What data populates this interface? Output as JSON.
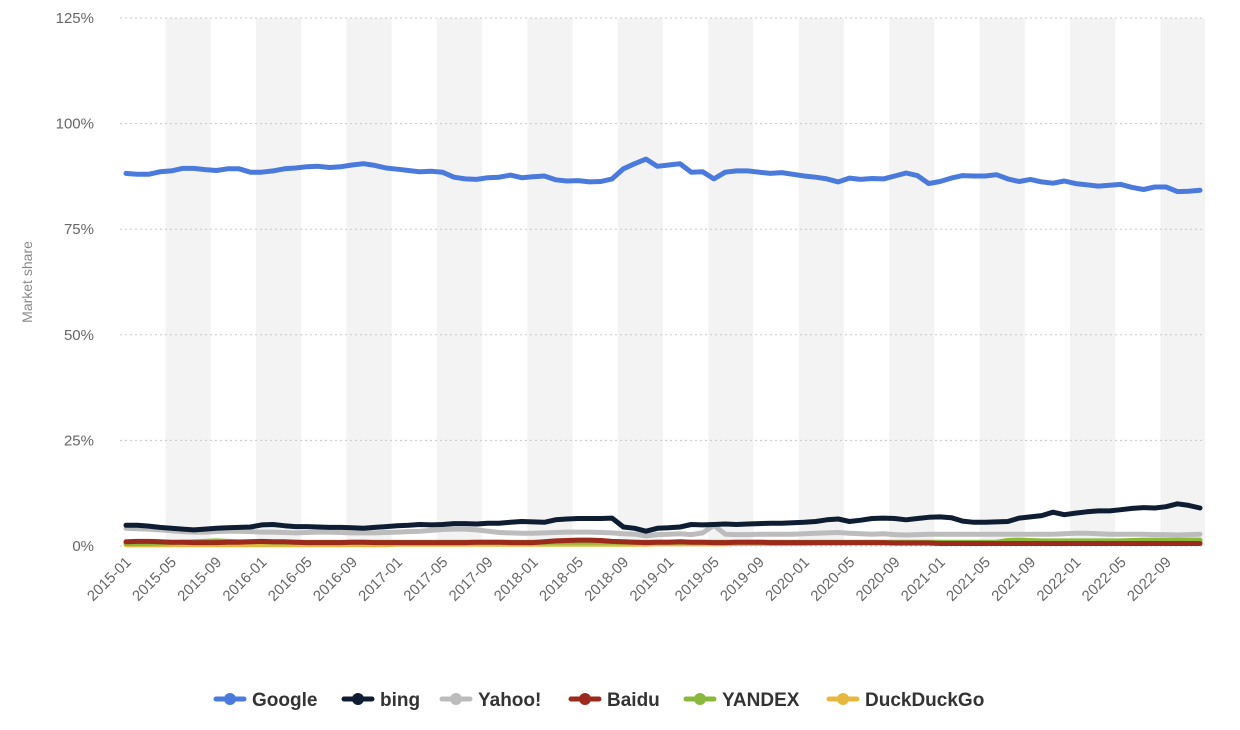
{
  "chart_data": {
    "type": "line",
    "title": "",
    "xlabel": "",
    "ylabel": "Market share",
    "ylim": [
      0,
      125
    ],
    "y_ticks": [
      "0%",
      "25%",
      "50%",
      "75%",
      "100%",
      "125%"
    ],
    "y_tick_values": [
      0,
      25,
      50,
      75,
      100,
      125
    ],
    "grid": "horizontal dotted",
    "legend_position": "bottom-center",
    "x": [
      "2015-01",
      "2015-02",
      "2015-03",
      "2015-04",
      "2015-05",
      "2015-06",
      "2015-07",
      "2015-08",
      "2015-09",
      "2015-10",
      "2015-11",
      "2015-12",
      "2016-01",
      "2016-02",
      "2016-03",
      "2016-04",
      "2016-05",
      "2016-06",
      "2016-07",
      "2016-08",
      "2016-09",
      "2016-10",
      "2016-11",
      "2016-12",
      "2017-01",
      "2017-02",
      "2017-03",
      "2017-04",
      "2017-05",
      "2017-06",
      "2017-07",
      "2017-08",
      "2017-09",
      "2017-10",
      "2017-11",
      "2017-12",
      "2018-01",
      "2018-02",
      "2018-03",
      "2018-04",
      "2018-05",
      "2018-06",
      "2018-07",
      "2018-08",
      "2018-09",
      "2018-10",
      "2018-11",
      "2018-12",
      "2019-01",
      "2019-02",
      "2019-03",
      "2019-04",
      "2019-05",
      "2019-06",
      "2019-07",
      "2019-08",
      "2019-09",
      "2019-10",
      "2019-11",
      "2019-12",
      "2020-01",
      "2020-02",
      "2020-03",
      "2020-04",
      "2020-05",
      "2020-06",
      "2020-07",
      "2020-08",
      "2020-09",
      "2020-10",
      "2020-11",
      "2020-12",
      "2021-01",
      "2021-02",
      "2021-03",
      "2021-04",
      "2021-05",
      "2021-06",
      "2021-07",
      "2021-08",
      "2021-09",
      "2021-10",
      "2021-11",
      "2021-12",
      "2022-01",
      "2022-02",
      "2022-03",
      "2022-04",
      "2022-05",
      "2022-06",
      "2022-07",
      "2022-08",
      "2022-09",
      "2022-10",
      "2022-11",
      "2022-12"
    ],
    "x_tick_labels": [
      "2015-01",
      "2015-05",
      "2015-09",
      "2016-01",
      "2016-05",
      "2016-09",
      "2017-01",
      "2017-05",
      "2017-09",
      "2018-01",
      "2018-05",
      "2018-09",
      "2019-01",
      "2019-05",
      "2019-09",
      "2020-01",
      "2020-05",
      "2020-09",
      "2021-01",
      "2021-05",
      "2021-09",
      "2022-01",
      "2022-05",
      "2022-09"
    ],
    "series": [
      {
        "name": "Google",
        "color": "#4a7bdc",
        "values": [
          88.2,
          88,
          88,
          88.6,
          88.8,
          89.4,
          89.4,
          89.1,
          88.9,
          89.3,
          89.3,
          88.5,
          88.5,
          88.8,
          89.3,
          89.5,
          89.8,
          89.9,
          89.6,
          89.8,
          90.2,
          90.5,
          90.1,
          89.5,
          89.2,
          88.9,
          88.6,
          88.7,
          88.5,
          87.3,
          86.9,
          86.8,
          87.2,
          87.3,
          87.8,
          87.2,
          87.4,
          87.6,
          86.7,
          86.4,
          86.5,
          86.2,
          86.3,
          86.9,
          89.3,
          90.5,
          91.6,
          89.9,
          90.2,
          90.5,
          88.5,
          88.6,
          86.9,
          88.5,
          88.8,
          88.8,
          88.5,
          88.2,
          88.4,
          88,
          87.6,
          87.3,
          86.9,
          86.2,
          87.1,
          86.8,
          87,
          86.9,
          87.6,
          88.3,
          87.7,
          85.8,
          86.3,
          87.1,
          87.7,
          87.6,
          87.6,
          87.9,
          86.9,
          86.3,
          86.8,
          86.2,
          85.9,
          86.4,
          85.8,
          85.5,
          85.2,
          85.4,
          85.6,
          84.9,
          84.4,
          85,
          85,
          83.9,
          84,
          84.2
        ]
      },
      {
        "name": "bing",
        "color": "#0f1d33",
        "values": [
          4.9,
          4.9,
          4.7,
          4.4,
          4.2,
          4,
          3.8,
          4,
          4.2,
          4.3,
          4.4,
          4.5,
          5,
          5.1,
          4.8,
          4.6,
          4.6,
          4.5,
          4.4,
          4.4,
          4.3,
          4.2,
          4.4,
          4.6,
          4.8,
          4.9,
          5.1,
          5,
          5.1,
          5.3,
          5.3,
          5.2,
          5.4,
          5.4,
          5.6,
          5.8,
          5.7,
          5.6,
          6.2,
          6.4,
          6.5,
          6.5,
          6.5,
          6.6,
          4.5,
          4.2,
          3.5,
          4.2,
          4.3,
          4.5,
          5.1,
          5,
          5.1,
          5.2,
          5.1,
          5.2,
          5.3,
          5.4,
          5.4,
          5.5,
          5.6,
          5.8,
          6.2,
          6.4,
          5.8,
          6.1,
          6.5,
          6.6,
          6.5,
          6.2,
          6.5,
          6.8,
          6.9,
          6.7,
          5.9,
          5.6,
          5.6,
          5.7,
          5.8,
          6.6,
          6.9,
          7.2,
          8,
          7.4,
          7.8,
          8.1,
          8.3,
          8.3,
          8.6,
          8.9,
          9.1,
          9,
          9.3,
          10,
          9.6,
          9
        ]
      },
      {
        "name": "Yahoo!",
        "color": "#bcbcbc",
        "values": [
          4.2,
          4.1,
          4,
          3.8,
          3.6,
          3.4,
          3.3,
          3.3,
          3.4,
          3.5,
          3.5,
          3.4,
          3.3,
          3.3,
          3.2,
          3.1,
          3.2,
          3.3,
          3.3,
          3.2,
          3.1,
          3.1,
          3.1,
          3.2,
          3.3,
          3.4,
          3.5,
          3.7,
          3.9,
          4,
          4,
          3.8,
          3.5,
          3.2,
          3.1,
          3,
          3,
          3.1,
          3.2,
          3.3,
          3.3,
          3.3,
          3.2,
          3.1,
          2.9,
          2.8,
          2.4,
          2.7,
          2.8,
          2.9,
          2.7,
          3.1,
          4.9,
          2.8,
          2.7,
          2.7,
          2.8,
          2.8,
          2.8,
          2.8,
          2.9,
          3,
          3.1,
          3.2,
          3,
          2.9,
          2.8,
          2.9,
          2.7,
          2.6,
          2.7,
          2.8,
          2.8,
          2.8,
          2.8,
          2.8,
          2.8,
          2.8,
          2.8,
          2.8,
          2.8,
          2.8,
          2.8,
          2.9,
          3,
          3,
          2.9,
          2.8,
          2.8,
          2.8,
          2.8,
          2.7,
          2.7,
          2.6,
          2.7,
          2.8
        ]
      },
      {
        "name": "Baidu",
        "color": "#9b2a1c",
        "values": [
          1,
          1.1,
          1.1,
          1,
          0.9,
          0.9,
          0.8,
          0.8,
          0.8,
          0.9,
          0.9,
          1,
          1.1,
          1,
          1,
          0.9,
          0.8,
          0.8,
          0.8,
          0.8,
          0.9,
          0.9,
          0.8,
          0.8,
          0.8,
          0.8,
          0.8,
          0.8,
          0.8,
          0.8,
          0.8,
          0.9,
          0.9,
          0.9,
          0.8,
          0.8,
          0.8,
          1,
          1.2,
          1.3,
          1.4,
          1.4,
          1.3,
          1.1,
          1,
          0.9,
          0.8,
          0.9,
          0.9,
          1,
          0.9,
          0.9,
          0.8,
          0.8,
          0.9,
          0.9,
          0.9,
          0.8,
          0.8,
          0.8,
          0.8,
          0.8,
          0.8,
          0.8,
          0.8,
          0.8,
          0.8,
          0.8,
          0.7,
          0.7,
          0.7,
          0.7,
          0.6,
          0.6,
          0.6,
          0.6,
          0.6,
          0.6,
          0.6,
          0.6,
          0.6,
          0.6,
          0.6,
          0.6,
          0.6,
          0.6,
          0.6,
          0.6,
          0.6,
          0.6,
          0.6,
          0.6,
          0.6,
          0.6,
          0.6,
          0.6
        ]
      },
      {
        "name": "YANDEX",
        "color": "#8ab83b",
        "values": [
          0.6,
          0.6,
          0.6,
          0.7,
          0.8,
          0.9,
          1,
          1.1,
          1.2,
          1.1,
          1,
          1,
          1,
          0.9,
          0.9,
          0.9,
          0.9,
          0.9,
          0.9,
          0.9,
          0.9,
          0.9,
          0.9,
          0.9,
          0.9,
          0.9,
          0.9,
          0.9,
          0.9,
          0.9,
          0.9,
          0.9,
          0.9,
          0.9,
          0.9,
          0.9,
          0.9,
          0.9,
          0.9,
          0.9,
          0.9,
          0.9,
          0.9,
          0.9,
          0.9,
          0.9,
          0.9,
          0.9,
          0.9,
          0.9,
          0.9,
          0.9,
          0.9,
          0.9,
          0.9,
          0.9,
          0.9,
          0.9,
          0.9,
          0.9,
          0.9,
          0.9,
          0.9,
          0.9,
          0.9,
          0.9,
          0.9,
          0.9,
          0.9,
          0.9,
          0.9,
          0.9,
          0.9,
          0.9,
          0.9,
          0.9,
          0.9,
          0.9,
          1.3,
          1.4,
          1.3,
          1.2,
          1.2,
          1.2,
          1.2,
          1.2,
          1.2,
          1.2,
          1.2,
          1.3,
          1.4,
          1.4,
          1.4,
          1.4,
          1.4,
          1.4
        ]
      },
      {
        "name": "DuckDuckGo",
        "color": "#e5b83f",
        "values": [
          0.3,
          0.3,
          0.3,
          0.3,
          0.3,
          0.3,
          0.3,
          0.3,
          0.3,
          0.3,
          0.3,
          0.3,
          0.3,
          0.3,
          0.3,
          0.3,
          0.3,
          0.3,
          0.3,
          0.3,
          0.3,
          0.3,
          0.3,
          0.3,
          0.4,
          0.4,
          0.4,
          0.4,
          0.4,
          0.4,
          0.4,
          0.4,
          0.4,
          0.4,
          0.4,
          0.4,
          0.4,
          0.4,
          0.4,
          0.4,
          0.4,
          0.4,
          0.4,
          0.4,
          0.4,
          0.4,
          0.4,
          0.5,
          0.5,
          0.5,
          0.5,
          0.5,
          0.5,
          0.5,
          0.6,
          0.6,
          0.6,
          0.6,
          0.6,
          0.6,
          0.6,
          0.7,
          0.7,
          0.7,
          0.7,
          0.7,
          0.7,
          0.7,
          0.7,
          0.7,
          0.7,
          0.7,
          0.7,
          0.7,
          0.7,
          0.7,
          0.7,
          0.7,
          0.7,
          0.8,
          0.8,
          0.8,
          0.8,
          0.9,
          0.9,
          0.9,
          0.9,
          0.9,
          0.9,
          0.9,
          0.9,
          0.9,
          0.9,
          0.9,
          0.9,
          0.9
        ]
      }
    ]
  }
}
